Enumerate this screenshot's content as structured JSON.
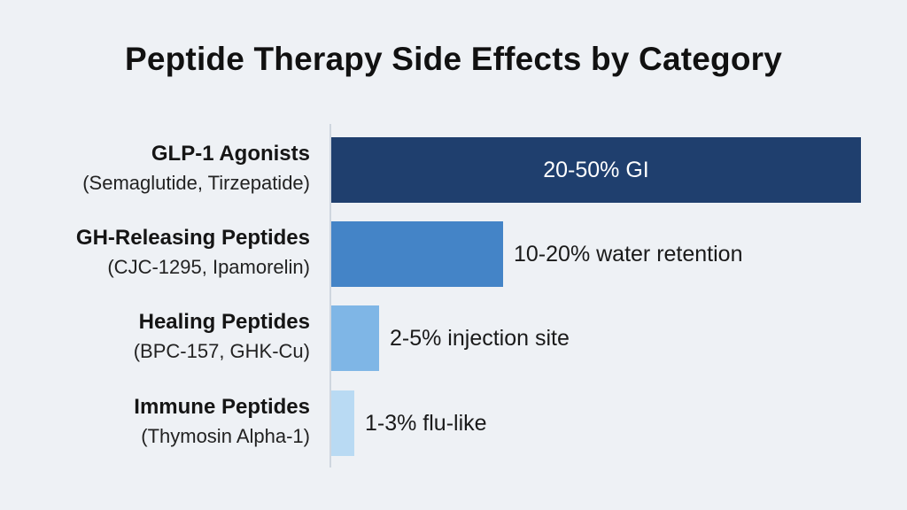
{
  "title": "Peptide Therapy Side Effects by Category",
  "chart_data": {
    "type": "bar",
    "orientation": "horizontal",
    "title": "Peptide Therapy Side Effects by Category",
    "xlabel": "",
    "ylabel": "",
    "xlim": [
      0,
      50
    ],
    "grid": false,
    "categories": [
      {
        "name": "GLP-1 Agonists",
        "examples": "(Semaglutide, Tirzepatide)",
        "value": 50,
        "label": "20-50% GI",
        "color": "#1f3f6e",
        "label_position": "inside"
      },
      {
        "name": "GH-Releasing Peptides",
        "examples": "(CJC-1295, Ipamorelin)",
        "value": 16.2,
        "label": "10-20% water retention",
        "color": "#4484c7",
        "label_position": "outside"
      },
      {
        "name": "Healing Peptides",
        "examples": "(BPC-157, GHK-Cu)",
        "value": 4.5,
        "label": "2-5% injection site",
        "color": "#7fb6e6",
        "label_position": "outside"
      },
      {
        "name": "Immune Peptides",
        "examples": "(Thymosin Alpha-1)",
        "value": 2.2,
        "label": "1-3% flu-like",
        "color": "#b9daf3",
        "label_position": "outside"
      }
    ]
  }
}
